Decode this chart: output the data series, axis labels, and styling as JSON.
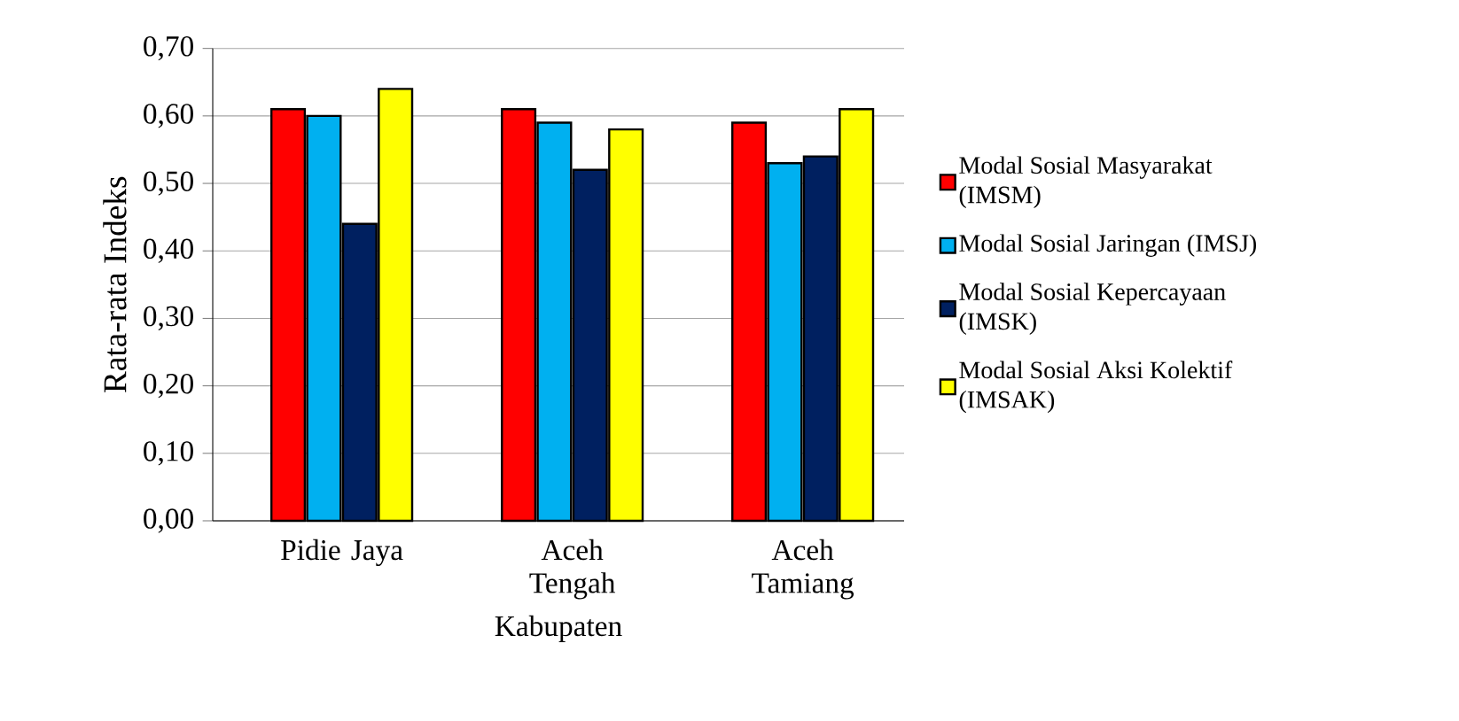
{
  "chart_data": {
    "type": "bar",
    "xlabel": "Kabupaten",
    "ylabel": "Rata-rata Indeks",
    "categories": [
      "Pidie Jaya",
      "Aceh Tengah",
      "Aceh Tamiang"
    ],
    "series": [
      {
        "name": "Modal Sosial Masyarakat (IMSM)",
        "color": "#ff0000",
        "values": [
          0.61,
          0.61,
          0.59
        ]
      },
      {
        "name": "Modal Sosial Jaringan (IMSJ)",
        "color": "#00b0f0",
        "values": [
          0.6,
          0.59,
          0.53
        ]
      },
      {
        "name": "Modal Sosial Kepercayaan (IMSK)",
        "color": "#002060",
        "values": [
          0.44,
          0.52,
          0.54
        ]
      },
      {
        "name": "Modal Sosial Aksi Kolektif (IMSAK)",
        "color": "#ffff00",
        "values": [
          0.64,
          0.58,
          0.61
        ]
      }
    ],
    "ylim": [
      0,
      0.7
    ],
    "yticks": [
      {
        "value": 0,
        "label": "0,00"
      },
      {
        "value": 0.1,
        "label": "0,10"
      },
      {
        "value": 0.2,
        "label": "0,20"
      },
      {
        "value": 0.3,
        "label": "0,30"
      },
      {
        "value": 0.4,
        "label": "0,40"
      },
      {
        "value": 0.5,
        "label": "0,50"
      },
      {
        "value": 0.6,
        "label": "0,60"
      },
      {
        "value": 0.7,
        "label": "0,70"
      }
    ],
    "grid": "y",
    "legend": "right"
  }
}
